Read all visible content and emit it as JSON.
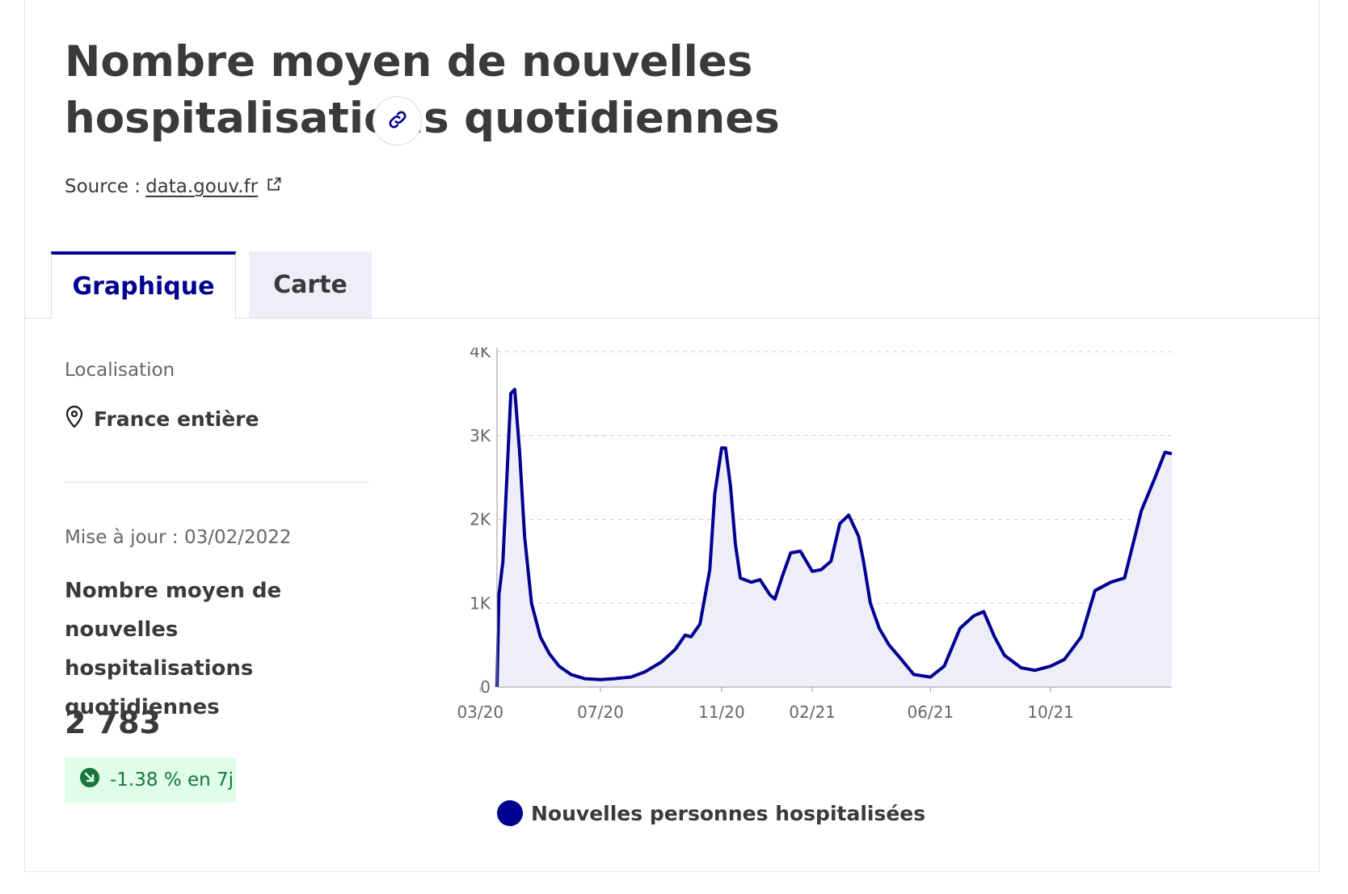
{
  "title": "Nombre moyen de nouvelles hospitalisations quotidiennes",
  "source": {
    "label": "Source :",
    "link_text": "data.gouv.fr"
  },
  "tabs": [
    {
      "label": "Graphique",
      "active": true
    },
    {
      "label": "Carte",
      "active": false
    }
  ],
  "sidebar": {
    "location_label": "Localisation",
    "location_value": "France entière",
    "update": "Mise à jour : 03/02/2022",
    "kpi_label": "Nombre moyen de nouvelles hospitalisations quotidiennes",
    "kpi_value": "2 783",
    "trend": "-1.38 % en 7j"
  },
  "colors": {
    "accent": "#000091",
    "fill": "#eeeef8",
    "trend_bg": "#dffde9",
    "trend_text": "#18753c"
  },
  "icons": {
    "link": "link-icon",
    "external": "external-link-icon",
    "location": "map-pin-icon",
    "trend": "arrow-down-right-icon"
  },
  "chart_data": {
    "type": "area",
    "title": "",
    "xlabel": "",
    "ylabel": "",
    "ylim": [
      0,
      4000
    ],
    "yticks": [
      0,
      1000,
      2000,
      3000,
      4000
    ],
    "ytick_labels": [
      "0",
      "1K",
      "2K",
      "3K",
      "4K"
    ],
    "xticks": [
      "2020-03",
      "2020-07",
      "2020-11",
      "2021-02",
      "2021-06",
      "2021-10"
    ],
    "xtick_labels": [
      "03/20",
      "07/20",
      "11/20",
      "02/21",
      "06/21",
      "10/21"
    ],
    "grid": true,
    "legend_position": "bottom",
    "series": [
      {
        "name": "Nouvelles personnes hospitalisées",
        "x": [
          "2020-03-18",
          "2020-03-20",
          "2020-03-24",
          "2020-03-28",
          "2020-04-01",
          "2020-04-05",
          "2020-04-10",
          "2020-04-15",
          "2020-04-22",
          "2020-05-01",
          "2020-05-10",
          "2020-05-20",
          "2020-06-01",
          "2020-06-15",
          "2020-07-01",
          "2020-07-15",
          "2020-08-01",
          "2020-08-15",
          "2020-09-01",
          "2020-09-15",
          "2020-09-25",
          "2020-10-01",
          "2020-10-10",
          "2020-10-20",
          "2020-10-25",
          "2020-11-01",
          "2020-11-05",
          "2020-11-10",
          "2020-11-15",
          "2020-11-20",
          "2020-12-01",
          "2020-12-10",
          "2020-12-20",
          "2020-12-25",
          "2021-01-01",
          "2021-01-10",
          "2021-01-20",
          "2021-02-01",
          "2021-02-10",
          "2021-02-20",
          "2021-03-01",
          "2021-03-10",
          "2021-03-20",
          "2021-03-25",
          "2021-04-01",
          "2021-04-10",
          "2021-04-20",
          "2021-05-01",
          "2021-05-15",
          "2021-06-01",
          "2021-06-15",
          "2021-07-01",
          "2021-07-15",
          "2021-07-25",
          "2021-08-05",
          "2021-08-15",
          "2021-09-01",
          "2021-09-15",
          "2021-10-01",
          "2021-10-15",
          "2021-11-01",
          "2021-11-15",
          "2021-12-01",
          "2021-12-15",
          "2022-01-01",
          "2022-01-15",
          "2022-01-25",
          "2022-02-01"
        ],
        "values": [
          0,
          1100,
          1500,
          2500,
          3500,
          3550,
          2800,
          1800,
          1000,
          600,
          400,
          250,
          150,
          100,
          90,
          100,
          120,
          180,
          300,
          450,
          620,
          600,
          750,
          1400,
          2300,
          2850,
          2850,
          2400,
          1700,
          1300,
          1250,
          1280,
          1100,
          1050,
          1300,
          1600,
          1620,
          1380,
          1400,
          1500,
          1950,
          2050,
          1800,
          1500,
          1000,
          700,
          500,
          350,
          150,
          120,
          250,
          700,
          850,
          900,
          600,
          380,
          230,
          200,
          250,
          330,
          600,
          1150,
          1250,
          1300,
          2100,
          2500,
          2800,
          2783
        ]
      }
    ]
  }
}
